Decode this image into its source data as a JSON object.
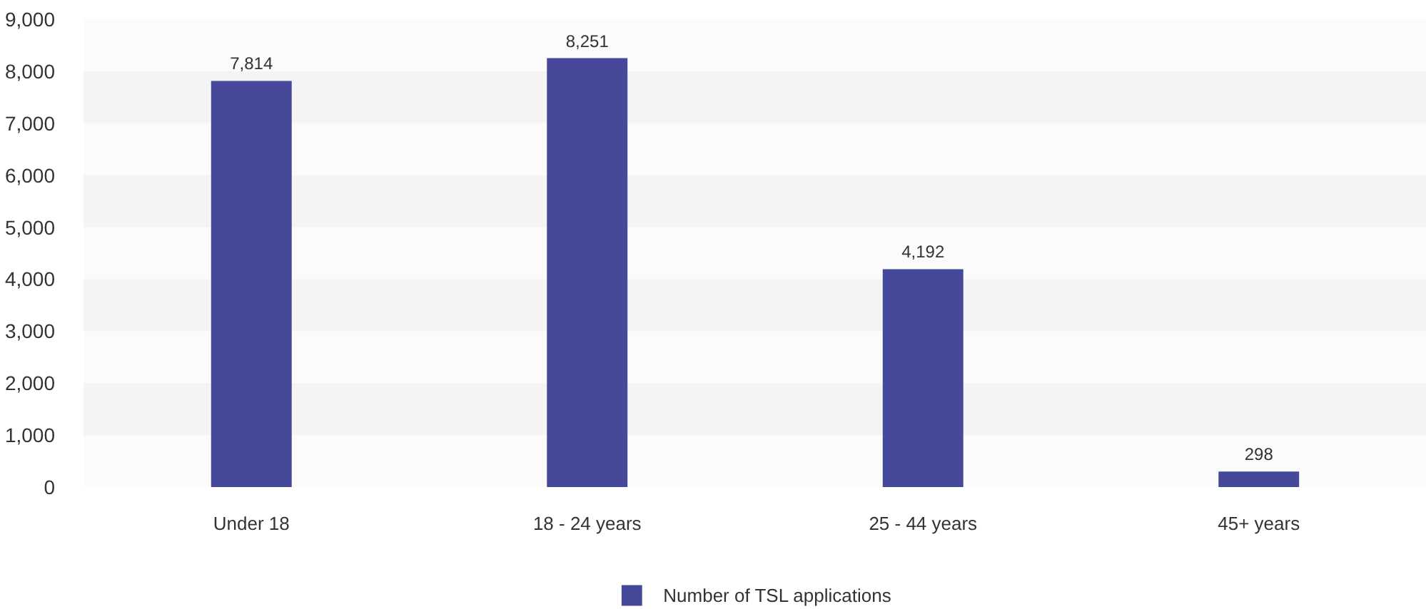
{
  "chart_data": {
    "type": "bar",
    "categories": [
      "Under 18",
      "18 - 24 years",
      "25 - 44 years",
      "45+ years"
    ],
    "series": [
      {
        "name": "Number of TSL applications",
        "color": "#46499a",
        "values": [
          7814,
          8251,
          4192,
          298
        ]
      }
    ],
    "ylim": [
      0,
      9000
    ],
    "yticks": [
      0,
      {
        "value": 1000,
        "label": "1,000"
      },
      {
        "value": 2000,
        "label": "2,000"
      },
      {
        "value": 3000,
        "label": "3,000"
      },
      {
        "value": 4000,
        "label": "4,000"
      },
      {
        "value": 5000,
        "label": "5,000"
      },
      {
        "value": 6000,
        "label": "6,000"
      },
      {
        "value": 7000,
        "label": "7,000"
      },
      {
        "value": 8000,
        "label": "8,000"
      },
      {
        "value": 9000,
        "label": "9,000"
      }
    ],
    "bands": [
      {
        "axis": "y",
        "from": 1000,
        "to": 2000,
        "color": "#f4f4f4"
      },
      {
        "axis": "y",
        "from": 3000,
        "to": 4000,
        "color": "#f4f4f4"
      },
      {
        "axis": "y",
        "from": 5000,
        "to": 6000,
        "color": "#f4f4f4"
      },
      {
        "axis": "y",
        "from": 7000,
        "to": 8000,
        "color": "#f4f4f4"
      }
    ],
    "value_labels": [
      "7,814",
      "8,251",
      "4,192",
      "298"
    ],
    "legend": "bottom"
  }
}
